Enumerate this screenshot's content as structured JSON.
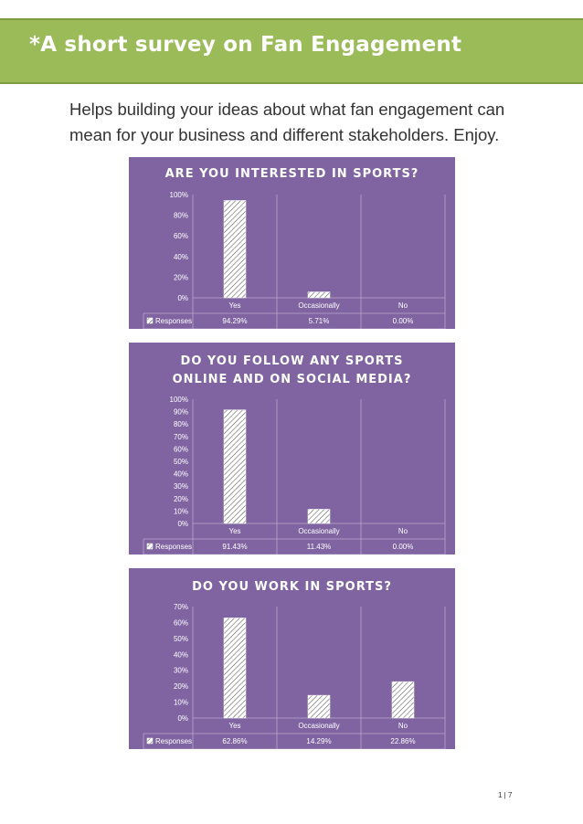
{
  "header": {
    "title": "*A short survey on Fan Engagement"
  },
  "intro": {
    "text": "Helps building your ideas about what fan engagement can mean for your business and different stakeholders. Enjoy."
  },
  "colors": {
    "banner": "#9bbb59",
    "chart_bg": "#8064a2",
    "bar_fill": "#ffffff",
    "bar_hatch": "#555555"
  },
  "chart_data": [
    {
      "type": "bar",
      "title_lines": [
        "ARE YOU INTERESTED IN SPORTS?"
      ],
      "categories": [
        "Yes",
        "Occasionally",
        "No"
      ],
      "series": [
        {
          "name": "Responses",
          "values": [
            94.29,
            5.71,
            0.0
          ]
        }
      ],
      "value_labels": [
        "94.29%",
        "5.71%",
        "0.00%"
      ],
      "yticks": [
        "0%",
        "20%",
        "40%",
        "60%",
        "80%",
        "100%"
      ],
      "ylim": [
        0,
        100
      ],
      "grid": "vertical",
      "legend": "data-table"
    },
    {
      "type": "bar",
      "title_lines": [
        "DO YOU FOLLOW ANY SPORTS",
        "ONLINE AND ON SOCIAL MEDIA?"
      ],
      "categories": [
        "Yes",
        "Occasionally",
        "No"
      ],
      "series": [
        {
          "name": "Responses",
          "values": [
            91.43,
            11.43,
            0.0
          ]
        }
      ],
      "value_labels": [
        "91.43%",
        "11.43%",
        "0.00%"
      ],
      "yticks": [
        "0%",
        "10%",
        "20%",
        "30%",
        "40%",
        "50%",
        "60%",
        "70%",
        "80%",
        "90%",
        "100%"
      ],
      "ylim": [
        0,
        100
      ],
      "grid": "vertical",
      "legend": "data-table"
    },
    {
      "type": "bar",
      "title_lines": [
        "DO YOU WORK IN SPORTS?"
      ],
      "categories": [
        "Yes",
        "Occasionally",
        "No"
      ],
      "series": [
        {
          "name": "Responses",
          "values": [
            62.86,
            14.29,
            22.86
          ]
        }
      ],
      "value_labels": [
        "62.86%",
        "14.29%",
        "22.86%"
      ],
      "yticks": [
        "0%",
        "10%",
        "20%",
        "30%",
        "40%",
        "50%",
        "60%",
        "70%"
      ],
      "ylim": [
        0,
        70
      ],
      "grid": "vertical",
      "legend": "data-table"
    }
  ],
  "footer": {
    "page": "1 | 7"
  }
}
